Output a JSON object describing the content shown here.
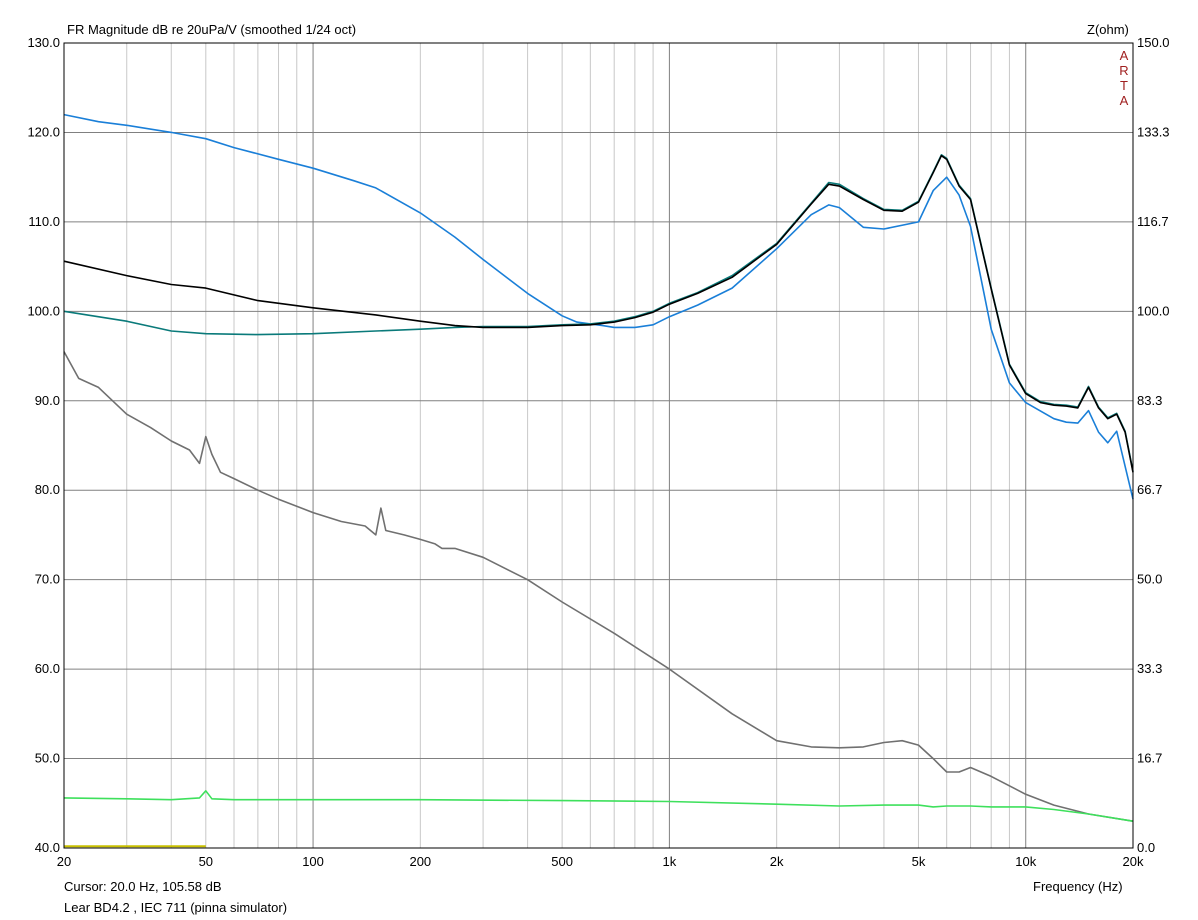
{
  "chart_data": {
    "type": "line",
    "title": "FR Magnitude dB re 20uPa/V (smoothed 1/24 oct)",
    "xlabel": "Frequency (Hz)",
    "ylabel": "",
    "y2label": "Z(ohm)",
    "xscale": "log",
    "xlim": [
      20,
      20000
    ],
    "ylim": [
      40,
      130
    ],
    "y2lim": [
      0,
      150
    ],
    "grid": true,
    "xticks": [
      20,
      50,
      100,
      200,
      500,
      1000,
      2000,
      5000,
      10000,
      20000
    ],
    "xtick_labels": [
      "20",
      "50",
      "100",
      "200",
      "500",
      "1k",
      "2k",
      "5k",
      "10k",
      "20k"
    ],
    "yticks": [
      "40.0",
      "50.0",
      "60.0",
      "70.0",
      "80.0",
      "90.0",
      "100.0",
      "110.0",
      "120.0",
      "130.0"
    ],
    "y2ticks": [
      "0.0",
      "16.7",
      "33.3",
      "50.0",
      "66.7",
      "83.3",
      "100.0",
      "116.7",
      "133.3",
      "150.0"
    ],
    "series": [
      {
        "color": "#1a7fd8",
        "x": [
          20,
          25,
          30,
          40,
          50,
          60,
          80,
          100,
          130,
          150,
          200,
          250,
          300,
          400,
          500,
          550,
          600,
          650,
          700,
          800,
          900,
          1000,
          1200,
          1500,
          2000,
          2500,
          2800,
          3000,
          3500,
          4000,
          5000,
          5500,
          6000,
          6500,
          7000,
          8000,
          9000,
          10000,
          12000,
          13000,
          14000,
          15000,
          16000,
          17000,
          18000,
          20000
        ],
        "y": [
          122,
          121.2,
          120.8,
          120,
          119.3,
          118.3,
          117,
          116,
          114.6,
          113.8,
          111,
          108.3,
          105.8,
          102,
          99.5,
          98.8,
          98.6,
          98.4,
          98.2,
          98.2,
          98.5,
          99.4,
          100.7,
          102.6,
          107,
          110.8,
          111.9,
          111.6,
          109.4,
          109.2,
          110,
          113.5,
          115,
          113,
          109.5,
          98,
          92,
          89.8,
          88,
          87.6,
          87.5,
          88.9,
          86.5,
          85.3,
          86.6,
          79
        ]
      },
      {
        "color": "#000000",
        "x": [
          20,
          30,
          40,
          50,
          70,
          100,
          150,
          200,
          250,
          300,
          400,
          500,
          600,
          700,
          800,
          900,
          1000,
          1200,
          1500,
          2000,
          2500,
          2800,
          3000,
          3500,
          4000,
          4500,
          5000,
          5500,
          5800,
          6000,
          6500,
          7000,
          8000,
          9000,
          10000,
          11000,
          12000,
          13000,
          14000,
          15000,
          16000,
          17000,
          18000,
          19000,
          20000
        ],
        "y": [
          105.6,
          104,
          103,
          102.6,
          101.2,
          100.4,
          99.6,
          98.9,
          98.4,
          98.2,
          98.2,
          98.4,
          98.5,
          98.8,
          99.3,
          99.9,
          100.8,
          102,
          103.8,
          107.5,
          112,
          114.2,
          114,
          112.5,
          111.3,
          111.2,
          112.2,
          115.5,
          117.4,
          117,
          114,
          112.5,
          102.5,
          94,
          90.8,
          89.8,
          89.5,
          89.4,
          89.2,
          91.5,
          89.2,
          88,
          88.5,
          86.5,
          82
        ]
      },
      {
        "color": "#0a7a7a",
        "x": [
          20,
          30,
          40,
          50,
          70,
          100,
          150,
          200,
          250,
          300,
          400,
          500,
          600,
          700,
          800,
          900,
          1000,
          1200,
          1500,
          2000,
          2500,
          2800,
          3000,
          3500,
          4000,
          4500,
          5000,
          5500,
          5800,
          6000,
          6500,
          7000,
          8000,
          9000,
          10000,
          11000,
          12000,
          13000,
          14000,
          15000,
          16000,
          17000,
          18000,
          19000,
          20000
        ],
        "y": [
          100,
          98.9,
          97.8,
          97.5,
          97.4,
          97.5,
          97.8,
          98,
          98.2,
          98.3,
          98.3,
          98.5,
          98.6,
          98.9,
          99.4,
          100,
          100.9,
          102.1,
          104,
          107.6,
          112.1,
          114.4,
          114.2,
          112.6,
          111.4,
          111.3,
          112.3,
          115.6,
          117.5,
          117.1,
          114.1,
          112.6,
          102.6,
          94.1,
          90.9,
          89.9,
          89.6,
          89.5,
          89.3,
          91.6,
          89.3,
          88.1,
          88.6,
          86.6,
          82.1
        ]
      },
      {
        "color": "#707070",
        "x": [
          20,
          22,
          25,
          30,
          35,
          40,
          45,
          48,
          50,
          52,
          55,
          60,
          70,
          80,
          100,
          120,
          140,
          150,
          155,
          160,
          180,
          200,
          220,
          230,
          250,
          300,
          400,
          500,
          700,
          1000,
          1500,
          2000,
          2500,
          3000,
          3500,
          4000,
          4500,
          5000,
          5500,
          6000,
          6500,
          7000,
          8000,
          10000,
          12000,
          15000,
          20000
        ],
        "y": [
          95.5,
          92.5,
          91.5,
          88.5,
          87,
          85.5,
          84.5,
          83,
          86,
          84,
          82,
          81.3,
          80,
          79,
          77.5,
          76.5,
          76,
          75,
          78,
          75.5,
          75,
          74.5,
          74,
          73.5,
          73.5,
          72.5,
          70,
          67.5,
          64,
          60,
          55,
          52,
          51.3,
          51.2,
          51.3,
          51.8,
          52,
          51.5,
          50,
          48.5,
          48.5,
          49,
          48,
          46,
          44.8,
          43.8,
          43
        ]
      },
      {
        "color": "#3ee05c",
        "x": [
          20,
          30,
          40,
          48,
          50,
          52,
          60,
          100,
          200,
          500,
          1000,
          2000,
          3000,
          4000,
          5000,
          5500,
          6000,
          7000,
          8000,
          10000,
          12000,
          15000,
          20000
        ],
        "y": [
          45.6,
          45.5,
          45.4,
          45.6,
          46.4,
          45.5,
          45.4,
          45.4,
          45.4,
          45.3,
          45.2,
          44.9,
          44.7,
          44.8,
          44.8,
          44.6,
          44.7,
          44.7,
          44.6,
          44.6,
          44.3,
          43.8,
          43
        ]
      },
      {
        "color": "#c8c000",
        "x": [
          20,
          50
        ],
        "y": [
          40.2,
          40.2
        ]
      }
    ]
  },
  "header": {
    "title": "FR Magnitude dB re 20uPa/V (smoothed 1/24 oct)",
    "right_axis_title": "Z(ohm)",
    "brand": [
      "A",
      "R",
      "T",
      "A"
    ]
  },
  "footer": {
    "cursor": "Cursor: 20.0 Hz, 105.58 dB",
    "device": "Lear BD4.2 , IEC 711 (pinna simulator)",
    "xlabel": "Frequency (Hz)"
  }
}
